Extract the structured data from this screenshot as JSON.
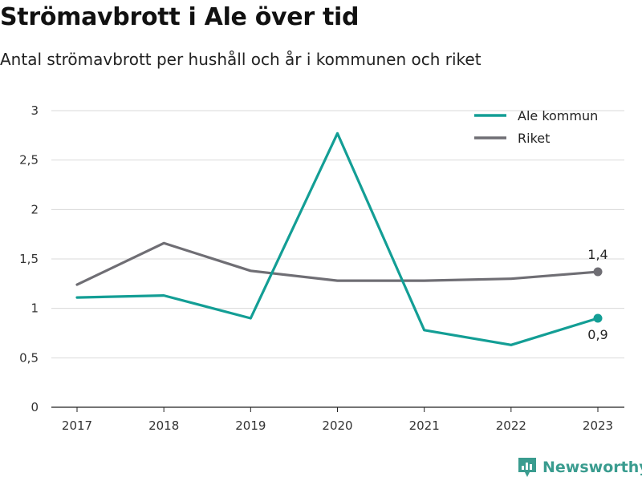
{
  "title": "Strömavbrott i Ale över tid",
  "subtitle": "Antal strömavbrott per hushåll och år i kommunen och riket",
  "brand": {
    "name": "Newsworthy",
    "icon": "newsworthy-logo-icon",
    "color": "#3a9c8f"
  },
  "chart_data": {
    "type": "line",
    "title": "Strömavbrott i Ale över tid",
    "subtitle": "Antal strömavbrott per hushåll och år i kommunen och riket",
    "xlabel": "",
    "ylabel": "",
    "x": [
      "2017",
      "2018",
      "2019",
      "2020",
      "2021",
      "2022",
      "2023"
    ],
    "ylim": [
      0,
      3
    ],
    "yticks": [
      0,
      0.5,
      1,
      1.5,
      2,
      2.5,
      3
    ],
    "ytick_labels": [
      "0",
      "0,5",
      "1",
      "1,5",
      "2",
      "2,5",
      "3"
    ],
    "grid": true,
    "legend_position": "top-right",
    "series": [
      {
        "name": "Ale kommun",
        "color": "#139e95",
        "values": [
          1.11,
          1.13,
          0.9,
          2.77,
          0.78,
          0.63,
          0.9
        ],
        "end_label": "0,9"
      },
      {
        "name": "Riket",
        "color": "#6f6e74",
        "values": [
          1.24,
          1.66,
          1.38,
          1.28,
          1.28,
          1.3,
          1.37
        ],
        "end_label": "1,4"
      }
    ]
  }
}
